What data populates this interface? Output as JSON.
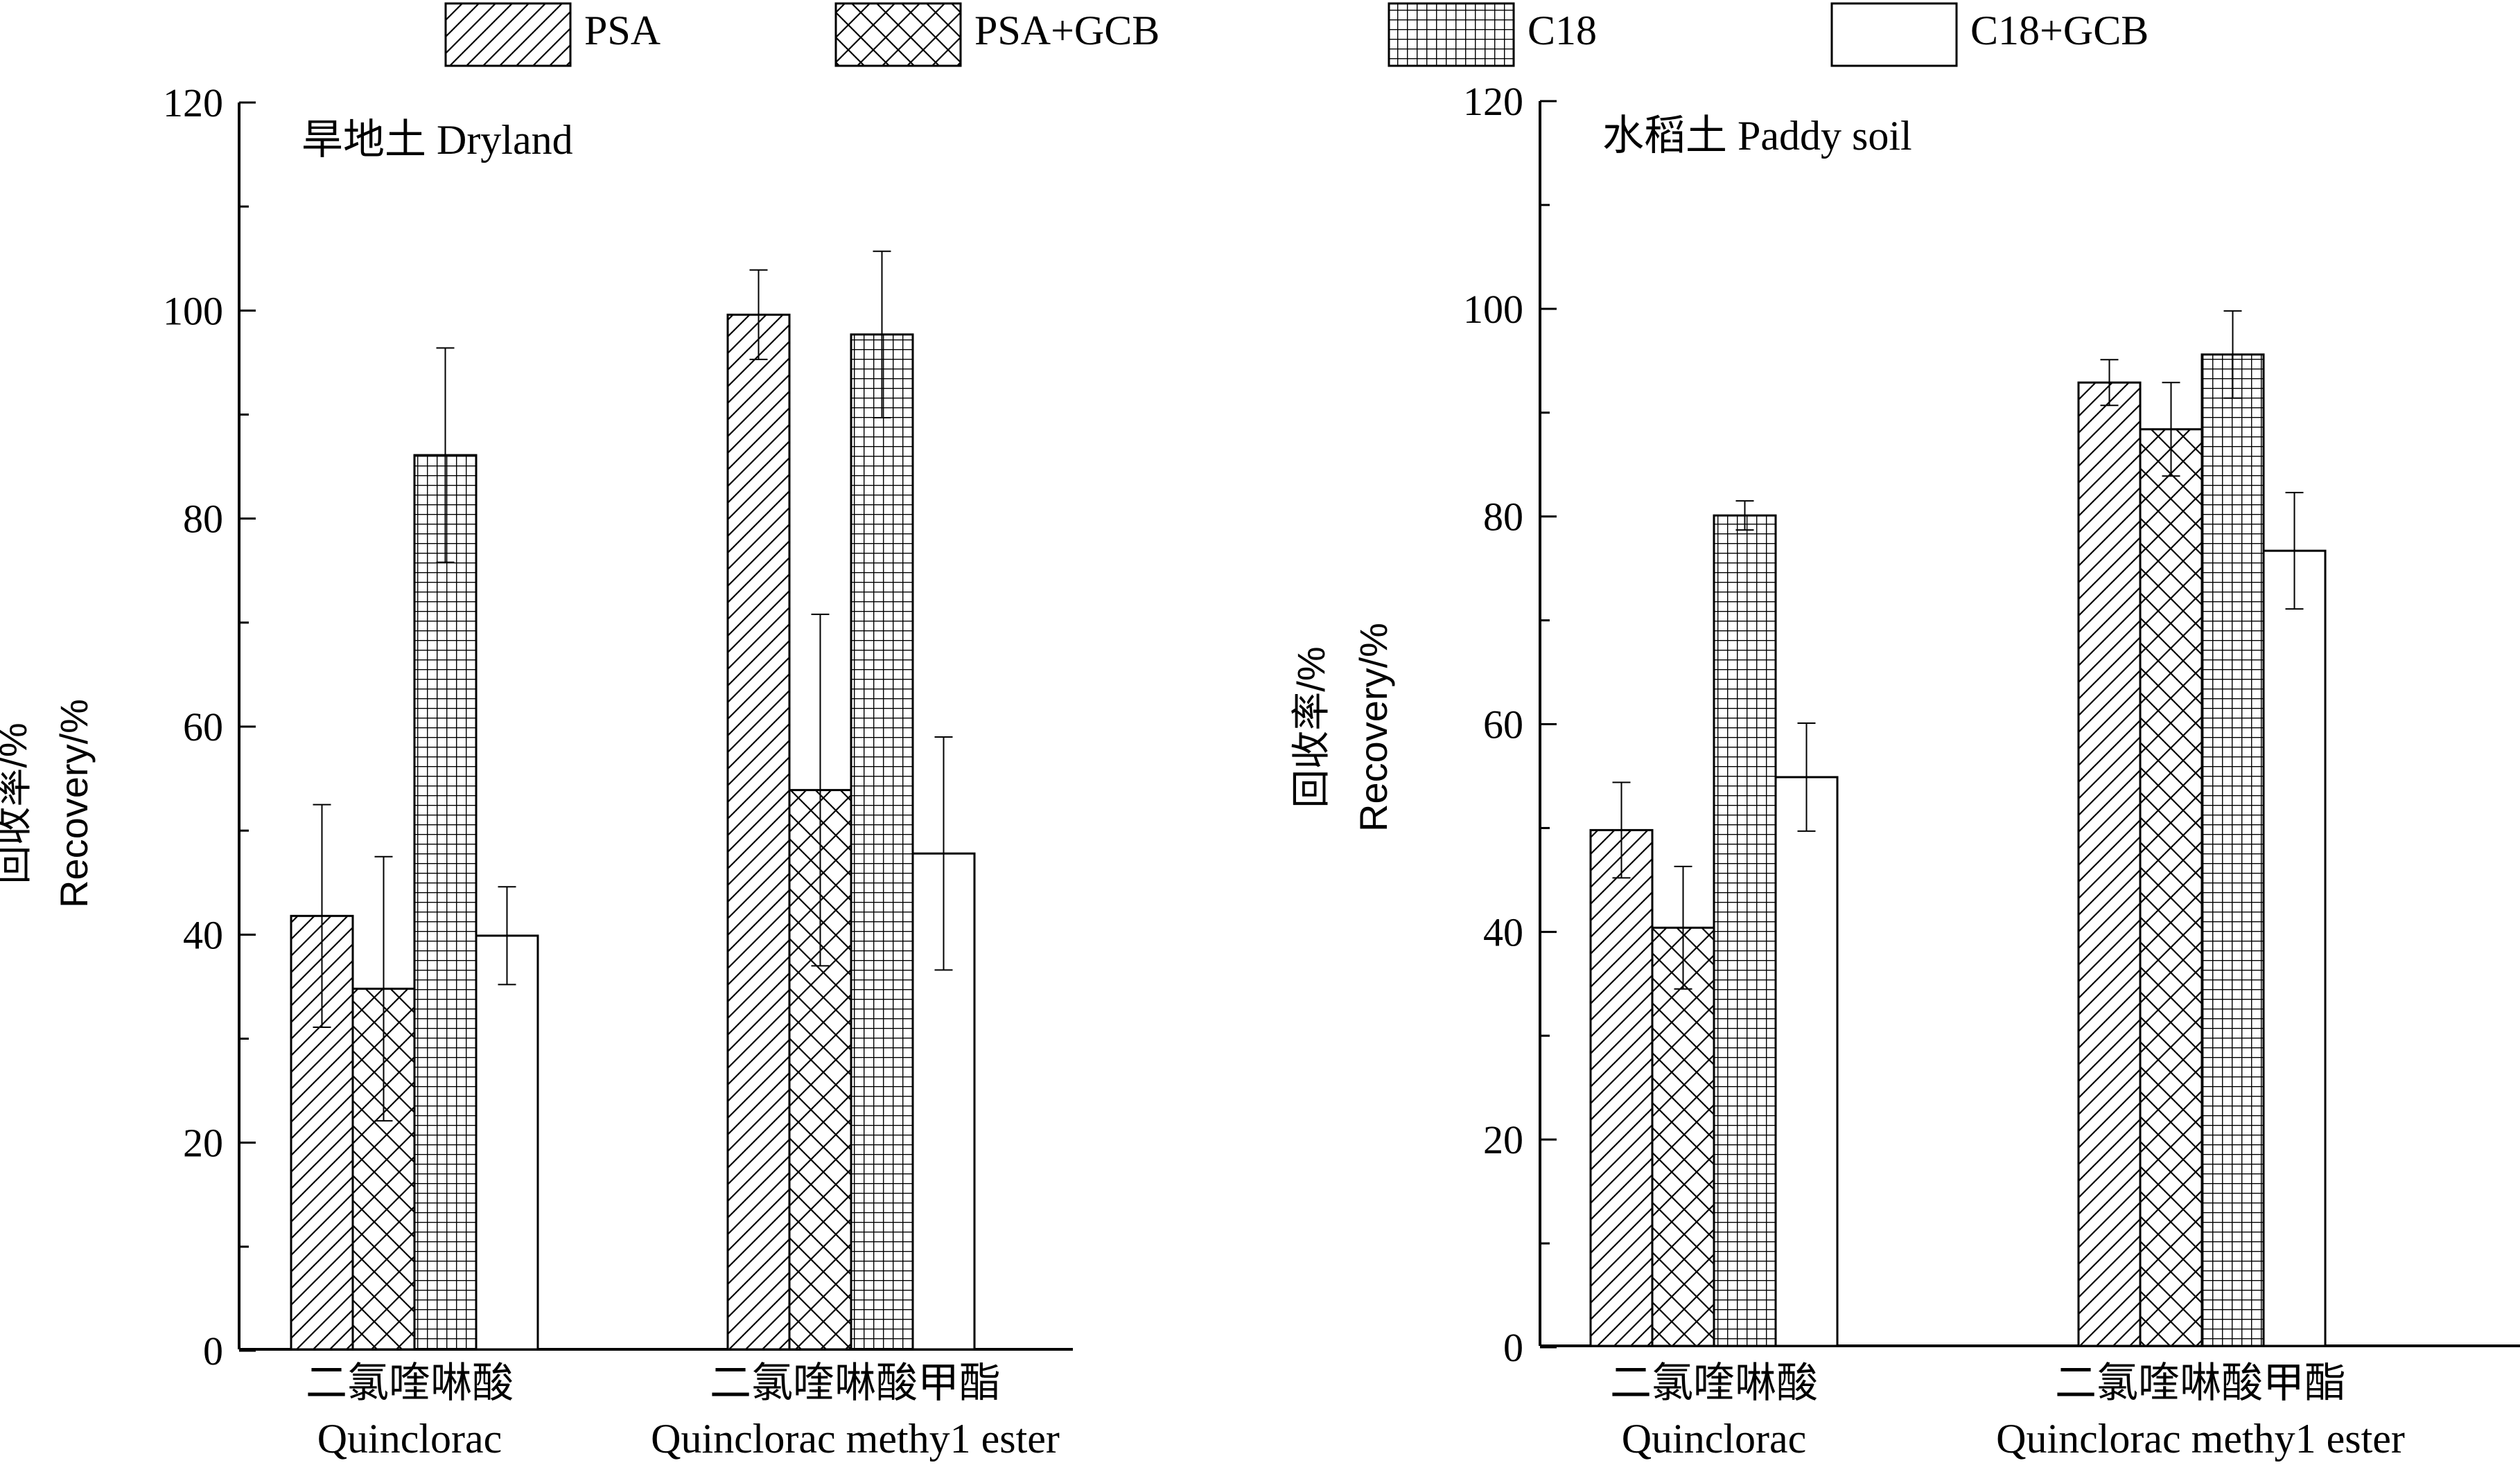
{
  "legend": [
    {
      "label": "PSA",
      "pattern": "hatch"
    },
    {
      "label": "PSA+GCB",
      "pattern": "cross"
    },
    {
      "label": "C18",
      "pattern": "grid"
    },
    {
      "label": "C18+GCB",
      "pattern": "none"
    }
  ],
  "chart_data": [
    {
      "type": "bar",
      "title": "旱地土 Dryland",
      "ylabel": [
        "回收率/%",
        "Recovery/%"
      ],
      "ylim": [
        0,
        120
      ],
      "yticks": [
        0,
        20,
        40,
        60,
        80,
        100,
        120
      ],
      "categories": [
        {
          "cn": "二氯喹啉酸",
          "en": "Quinclorac"
        },
        {
          "cn": "二氯喹啉酸甲酯",
          "en": "Quinclorac methy1 ester"
        }
      ],
      "series": [
        {
          "name": "PSA",
          "values": [
            41.8,
            99.6
          ],
          "errors": [
            10.7,
            4.3
          ]
        },
        {
          "name": "PSA+GCB",
          "values": [
            34.8,
            53.9
          ],
          "errors": [
            12.7,
            16.9
          ]
        },
        {
          "name": "C18",
          "values": [
            86.1,
            97.7
          ],
          "errors": [
            10.3,
            8.0
          ]
        },
        {
          "name": "C18+GCB",
          "values": [
            39.9,
            47.8
          ],
          "errors": [
            4.7,
            11.2
          ]
        }
      ]
    },
    {
      "type": "bar",
      "title": "水稻土 Paddy soil",
      "ylabel": [
        "回收率/%",
        "Recovery/%"
      ],
      "ylim": [
        0,
        120
      ],
      "yticks": [
        0,
        20,
        40,
        60,
        80,
        100,
        120
      ],
      "categories": [
        {
          "cn": "二氯喹啉酸",
          "en": "Quinclorac"
        },
        {
          "cn": "二氯喹啉酸甲酯",
          "en": "Quinclorac methy1 ester"
        }
      ],
      "series": [
        {
          "name": "PSA",
          "values": [
            49.8,
            92.9
          ],
          "errors": [
            4.6,
            2.2
          ]
        },
        {
          "name": "PSA+GCB",
          "values": [
            40.4,
            88.4
          ],
          "errors": [
            5.9,
            4.5
          ]
        },
        {
          "name": "C18",
          "values": [
            80.1,
            95.6
          ],
          "errors": [
            1.4,
            4.2
          ]
        },
        {
          "name": "C18+GCB",
          "values": [
            54.9,
            76.7
          ],
          "errors": [
            5.2,
            5.6
          ]
        }
      ]
    }
  ]
}
